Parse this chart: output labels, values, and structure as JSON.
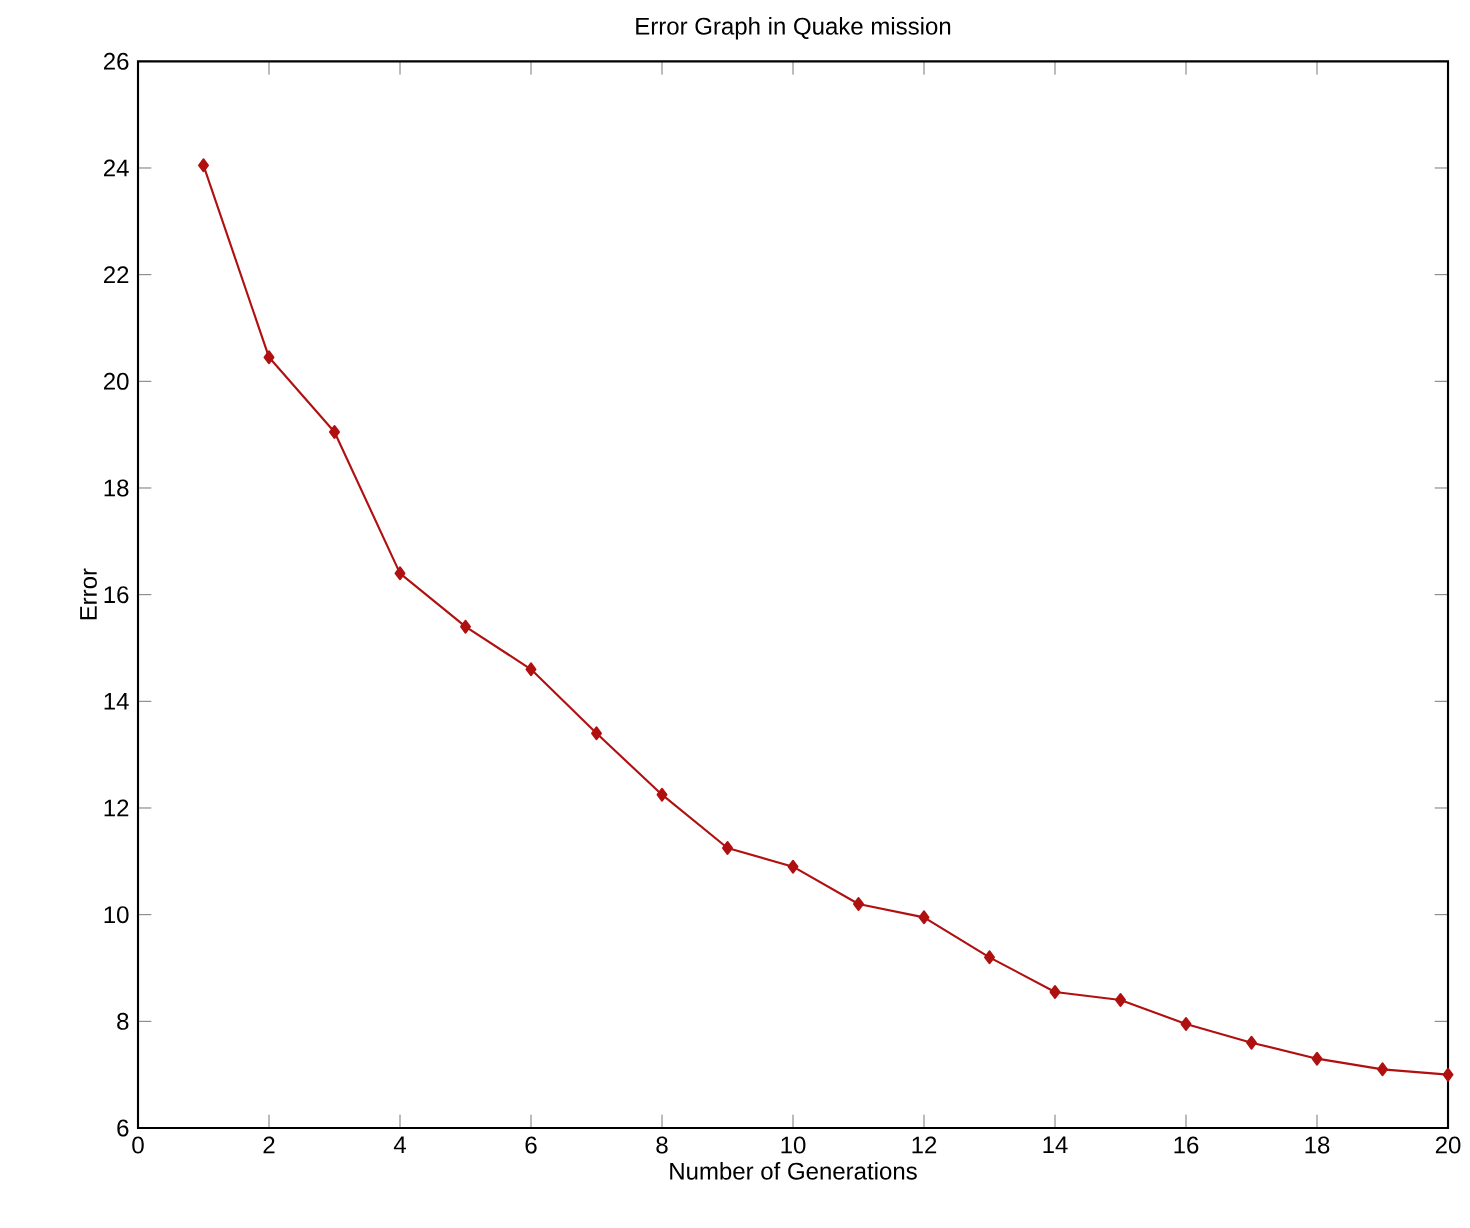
{
  "chart_data": {
    "type": "line",
    "title": "Error Graph in Quake mission",
    "xlabel": "Number of Generations",
    "ylabel": "Error",
    "x": [
      1,
      2,
      3,
      4,
      5,
      6,
      7,
      8,
      9,
      10,
      11,
      12,
      13,
      14,
      15,
      16,
      17,
      18,
      19,
      20
    ],
    "series": [
      {
        "color": "#b01010",
        "values": [
          24.05,
          20.45,
          19.05,
          16.4,
          15.4,
          14.6,
          13.4,
          12.25,
          11.25,
          10.9,
          10.2,
          9.95,
          9.2,
          8.55,
          8.4,
          7.95,
          7.6,
          7.3,
          7.1,
          7.0
        ]
      }
    ],
    "xlim": [
      0,
      20
    ],
    "ylim": [
      6,
      26
    ],
    "xticks": [
      0,
      2,
      4,
      6,
      8,
      10,
      12,
      14,
      16,
      18,
      20
    ],
    "yticks": [
      6,
      8,
      10,
      12,
      14,
      16,
      18,
      20,
      22,
      24,
      26
    ],
    "marker": "diamond",
    "line_style": "solid",
    "grid": false
  }
}
